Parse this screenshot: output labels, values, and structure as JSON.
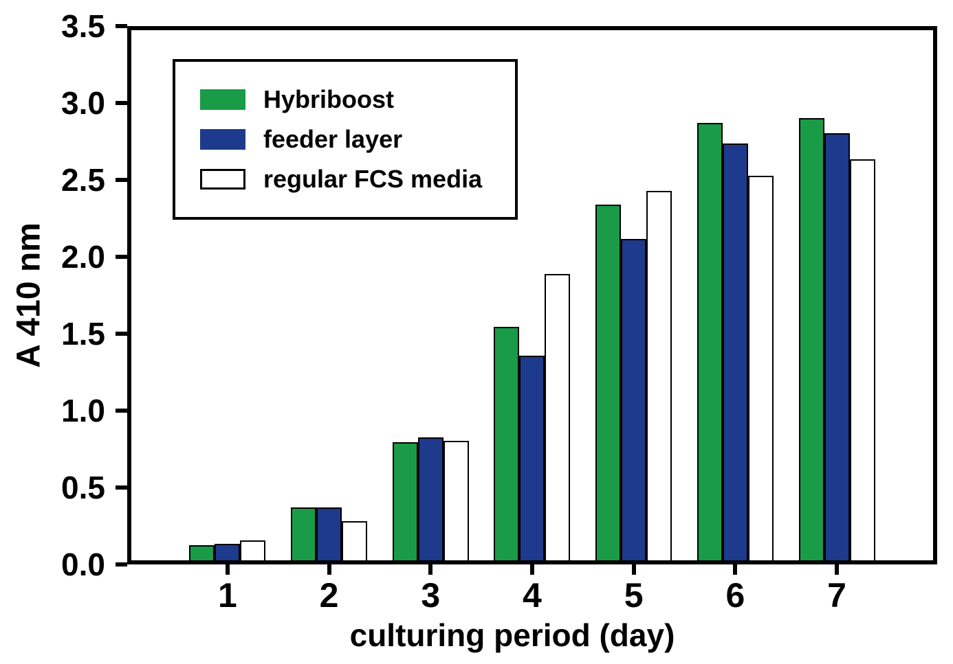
{
  "chart_data": {
    "type": "bar",
    "categories": [
      "1",
      "2",
      "3",
      "4",
      "5",
      "6",
      "7"
    ],
    "series": [
      {
        "name": "Hybriboost",
        "color": "#1a9b47",
        "values": [
          0.1,
          0.35,
          0.78,
          1.54,
          2.35,
          2.89,
          2.92
        ]
      },
      {
        "name": "feeder layer",
        "color": "#1e3a8c",
        "values": [
          0.11,
          0.35,
          0.81,
          1.35,
          2.12,
          2.75,
          2.82
        ]
      },
      {
        "name": "regular FCS media",
        "color": "#ffffff",
        "values": [
          0.13,
          0.26,
          0.79,
          1.89,
          2.44,
          2.54,
          2.65
        ]
      }
    ],
    "xlabel": "culturing period (day)",
    "ylabel": "A 410 nm",
    "ylim": [
      0,
      3.5
    ],
    "yticks": [
      0.0,
      0.5,
      1.0,
      1.5,
      2.0,
      2.5,
      3.0,
      3.5
    ],
    "ytick_labels": [
      "0.0",
      "0.5",
      "1.0",
      "1.5",
      "2.0",
      "2.5",
      "3.0",
      "3.5"
    ],
    "legend_position": "top-left",
    "grid": false,
    "frame_color": "#000000",
    "background_color": "#ffffff"
  }
}
